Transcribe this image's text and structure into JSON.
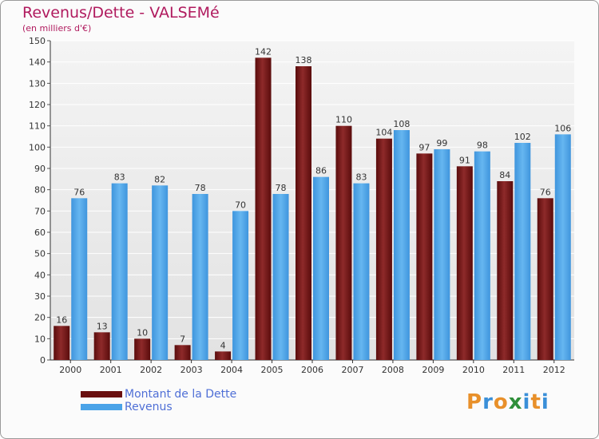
{
  "title": "Revenus/Dette - VALSEMé",
  "subtitle": "(en milliers d'€)",
  "logo": {
    "letters": [
      "P",
      "r",
      "o",
      "x",
      "i",
      "t",
      "i"
    ],
    "colors": [
      "#e8902a",
      "#3a8fd8",
      "#e8902a",
      "#2f8f3a",
      "#3a8fd8",
      "#e8902a",
      "#3a8fd8"
    ]
  },
  "colors": {
    "debt": "#7a1212",
    "revenue": "#4aa3e8"
  },
  "chart_data": {
    "type": "bar",
    "title": "Revenus/Dette - VALSEMé",
    "subtitle": "(en milliers d'€)",
    "categories": [
      "2000",
      "2001",
      "2002",
      "2003",
      "2004",
      "2005",
      "2006",
      "2007",
      "2008",
      "2009",
      "2010",
      "2011",
      "2012"
    ],
    "series": [
      {
        "name": "Montant de la Dette",
        "color": "#7a1212",
        "values": [
          16,
          13,
          10,
          7,
          4,
          142,
          138,
          110,
          104,
          97,
          91,
          84,
          76
        ]
      },
      {
        "name": "Revenus",
        "color": "#4aa3e8",
        "values": [
          76,
          83,
          82,
          78,
          70,
          78,
          86,
          83,
          108,
          99,
          98,
          102,
          106
        ]
      }
    ],
    "ylim": [
      0,
      150
    ],
    "yticks": [
      0,
      10,
      20,
      30,
      40,
      50,
      60,
      70,
      80,
      90,
      100,
      110,
      120,
      130,
      140,
      150
    ],
    "grid": true,
    "legend_position": "bottom-left"
  }
}
